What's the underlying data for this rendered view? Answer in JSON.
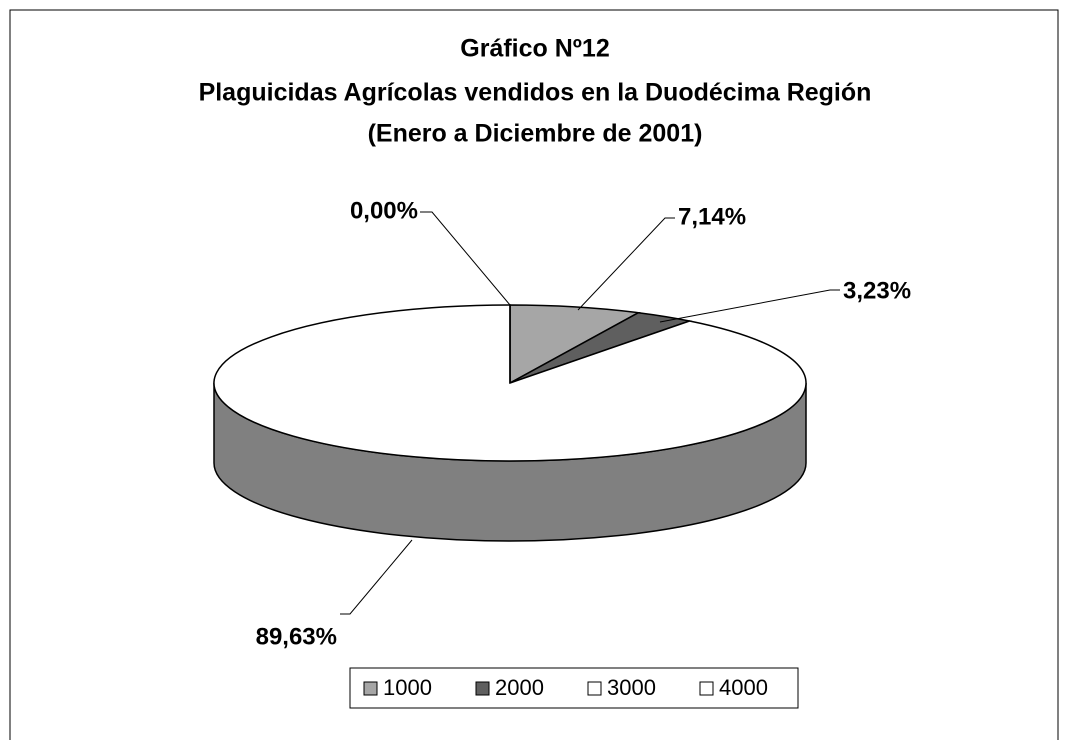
{
  "chart_data": {
    "type": "pie",
    "title": [
      "Gráfico Nº12",
      "Plaguicidas Agrícolas vendidos en la Duodécima Región",
      "(Enero a Diciembre de 2001)"
    ],
    "categories": [
      "1000",
      "2000",
      "3000",
      "4000"
    ],
    "values": [
      7.14,
      3.23,
      89.63,
      0.0
    ],
    "value_labels": [
      "7,14%",
      "3,23%",
      "89,63%",
      "0,00%"
    ],
    "colors": [
      "#a6a6a6",
      "#5f5f5f",
      "#ffffff",
      "#ffffff"
    ],
    "side_color": "#808080",
    "legend": "bottom"
  }
}
